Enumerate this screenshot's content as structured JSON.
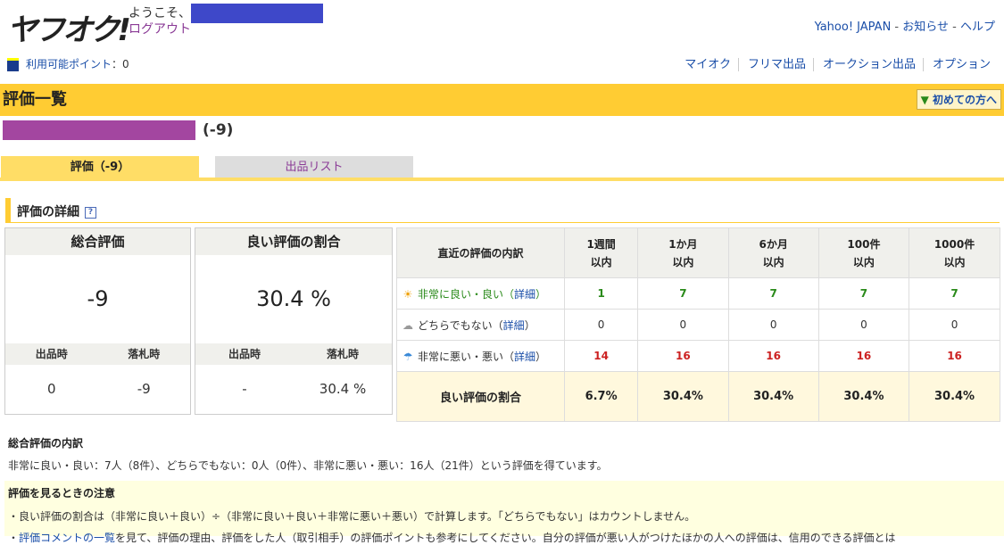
{
  "header": {
    "logo": "ヤフオク!",
    "welcome": "ようこそ、",
    "logout": "ログアウト",
    "links": [
      "Yahoo! JAPAN",
      "お知らせ",
      "ヘルプ"
    ],
    "points_label": "利用可能ポイント",
    "points_value": "：0",
    "nav": [
      "マイオク",
      "フリマ出品",
      "オークション出品",
      "オプション"
    ]
  },
  "page": {
    "title": "評価一覧",
    "beginner": "初めての方へ",
    "user_score": "(-9)"
  },
  "tabs": [
    {
      "label": "評価（-9）",
      "active": true
    },
    {
      "label": "出品リスト",
      "active": false
    }
  ],
  "section": {
    "title": "評価の詳細",
    "help": "?"
  },
  "total": {
    "title": "総合評価",
    "value": "-9",
    "sub_labels": [
      "出品時",
      "落札時"
    ],
    "sub_values": [
      "0",
      "-9"
    ]
  },
  "ratio": {
    "title": "良い評価の割合",
    "value": "30.4 %",
    "sub_labels": [
      "出品時",
      "落札時"
    ],
    "sub_values": [
      "-",
      "30.4 %"
    ]
  },
  "recent": {
    "header": "直近の評価の内訳",
    "columns": [
      [
        "1週間",
        "以内"
      ],
      [
        "1か月",
        "以内"
      ],
      [
        "6か月",
        "以内"
      ],
      [
        "100件",
        "以内"
      ],
      [
        "1000件",
        "以内"
      ]
    ],
    "rows": [
      {
        "label": "非常に良い・良い",
        "link": "詳細",
        "icon": "sun-icon",
        "values": [
          "1",
          "7",
          "7",
          "7",
          "7"
        ]
      },
      {
        "label": "どちらでもない",
        "link": "詳細",
        "icon": "cloud-icon",
        "values": [
          "0",
          "0",
          "0",
          "0",
          "0"
        ]
      },
      {
        "label": "非常に悪い・悪い",
        "link": "詳細",
        "icon": "umbrella-icon",
        "values": [
          "14",
          "16",
          "16",
          "16",
          "16"
        ]
      }
    ],
    "footer_label": "良い評価の割合",
    "footer_values": [
      "6.7%",
      "30.4%",
      "30.4%",
      "30.4%",
      "30.4%"
    ]
  },
  "breakdown": {
    "title": "総合評価の内訳",
    "text": "非常に良い・良い：7人（8件）、どちらでもない：0人（0件）、非常に悪い・悪い：16人（21件）という評価を得ています。"
  },
  "notes": {
    "title": "評価を見るときの注意",
    "line1": "・良い評価の割合は（非常に良い＋良い）÷（非常に良い＋良い＋非常に悪い＋悪い）で計算します。「どちらでもない」はカウントしません。",
    "line2_link": "評価コメントの一覧",
    "line2_text": "を見て、評価の理由、評価をした人（取引相手）の評価ポイントも参考にしてください。自分の評価が悪い人がつけたほかの人への評価は、信用のできる評価とは"
  }
}
